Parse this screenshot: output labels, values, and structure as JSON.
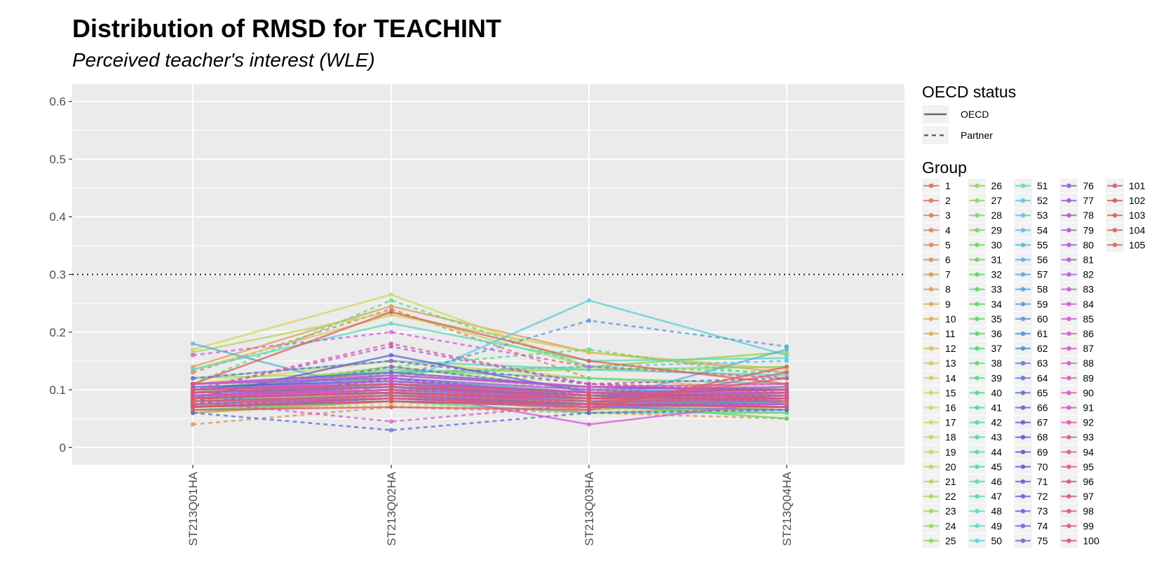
{
  "chart_data": {
    "type": "line",
    "title": "Distribution of RMSD for TEACHINT",
    "subtitle": "Perceived teacher's interest (WLE)",
    "xlabel": "",
    "ylabel": "",
    "categories": [
      "ST213Q01HA",
      "ST213Q02HA",
      "ST213Q03HA",
      "ST213Q04HA"
    ],
    "ylim": [
      -0.03,
      0.63
    ],
    "yticks": [
      0,
      0.1,
      0.2,
      0.3,
      0.4,
      0.5,
      0.6
    ],
    "ytick_labels": [
      "0",
      "0.1",
      "0.2",
      "0.3",
      "0.4",
      "0.5",
      "0.6"
    ],
    "reference_line": 0.3,
    "grid": true,
    "legend_position": "right",
    "linetype_legend": {
      "title": "OECD status",
      "entries": [
        "OECD",
        "Partner"
      ]
    },
    "group_legend": {
      "title": "Group",
      "groups": [
        "1",
        "2",
        "3",
        "4",
        "5",
        "6",
        "7",
        "8",
        "9",
        "10",
        "11",
        "12",
        "13",
        "14",
        "15",
        "16",
        "17",
        "18",
        "19",
        "20",
        "21",
        "22",
        "23",
        "24",
        "25",
        "26",
        "27",
        "28",
        "29",
        "30",
        "31",
        "32",
        "33",
        "34",
        "35",
        "36",
        "37",
        "38",
        "39",
        "40",
        "41",
        "42",
        "43",
        "44",
        "45",
        "46",
        "47",
        "48",
        "49",
        "50",
        "51",
        "52",
        "53",
        "54",
        "55",
        "56",
        "57",
        "58",
        "59",
        "60",
        "61",
        "62",
        "63",
        "64",
        "65",
        "66",
        "67",
        "68",
        "69",
        "70",
        "71",
        "72",
        "73",
        "74",
        "75",
        "76",
        "77",
        "78",
        "79",
        "80",
        "81",
        "82",
        "83",
        "84",
        "85",
        "86",
        "87",
        "88",
        "89",
        "90",
        "91",
        "92",
        "93",
        "94",
        "95",
        "96",
        "97",
        "98",
        "99",
        "100",
        "101",
        "102",
        "103",
        "104",
        "105"
      ]
    },
    "series": [
      {
        "name": "1",
        "status": "OECD",
        "values": [
          0.085,
          0.11,
          0.08,
          0.095
        ]
      },
      {
        "name": "2",
        "status": "OECD",
        "values": [
          0.072,
          0.095,
          0.065,
          0.085
        ]
      },
      {
        "name": "3",
        "status": "Partner",
        "values": [
          0.13,
          0.24,
          0.12,
          0.1
        ]
      },
      {
        "name": "4",
        "status": "OECD",
        "values": [
          0.06,
          0.08,
          0.07,
          0.06
        ]
      },
      {
        "name": "5",
        "status": "OECD",
        "values": [
          0.095,
          0.12,
          0.09,
          0.105
        ]
      },
      {
        "name": "6",
        "status": "Partner",
        "values": [
          0.04,
          0.07,
          0.06,
          0.05
        ]
      },
      {
        "name": "7",
        "status": "OECD",
        "values": [
          0.08,
          0.095,
          0.06,
          0.07
        ]
      },
      {
        "name": "8",
        "status": "OECD",
        "values": [
          0.14,
          0.245,
          0.165,
          0.13
        ]
      },
      {
        "name": "9",
        "status": "OECD",
        "values": [
          0.09,
          0.1,
          0.085,
          0.08
        ]
      },
      {
        "name": "10",
        "status": "Partner",
        "values": [
          0.075,
          0.13,
          0.1,
          0.11
        ]
      },
      {
        "name": "11",
        "status": "OECD",
        "values": [
          0.07,
          0.085,
          0.075,
          0.065
        ]
      },
      {
        "name": "12",
        "status": "Partner",
        "values": [
          0.1,
          0.14,
          0.11,
          0.095
        ]
      },
      {
        "name": "13",
        "status": "OECD",
        "values": [
          0.135,
          0.23,
          0.165,
          0.135
        ]
      },
      {
        "name": "14",
        "status": "OECD",
        "values": [
          0.085,
          0.1,
          0.09,
          0.08
        ]
      },
      {
        "name": "15",
        "status": "Partner",
        "values": [
          0.06,
          0.075,
          0.065,
          0.07
        ]
      },
      {
        "name": "16",
        "status": "OECD",
        "values": [
          0.11,
          0.15,
          0.12,
          0.1
        ]
      },
      {
        "name": "17",
        "status": "OECD",
        "values": [
          0.17,
          0.265,
          0.14,
          0.12
        ]
      },
      {
        "name": "18",
        "status": "Partner",
        "values": [
          0.095,
          0.105,
          0.085,
          0.09
        ]
      },
      {
        "name": "19",
        "status": "OECD",
        "values": [
          0.065,
          0.08,
          0.07,
          0.06
        ]
      },
      {
        "name": "20",
        "status": "OECD",
        "values": [
          0.165,
          0.235,
          0.14,
          0.165
        ]
      },
      {
        "name": "21",
        "status": "Partner",
        "values": [
          0.08,
          0.115,
          0.095,
          0.085
        ]
      },
      {
        "name": "22",
        "status": "OECD",
        "values": [
          0.1,
          0.11,
          0.085,
          0.095
        ]
      },
      {
        "name": "23",
        "status": "OECD",
        "values": [
          0.12,
          0.13,
          0.14,
          0.165
        ]
      },
      {
        "name": "24",
        "status": "Partner",
        "values": [
          0.075,
          0.1,
          0.09,
          0.075
        ]
      },
      {
        "name": "25",
        "status": "OECD",
        "values": [
          0.09,
          0.105,
          0.08,
          0.085
        ]
      },
      {
        "name": "26",
        "status": "OECD",
        "values": [
          0.11,
          0.12,
          0.095,
          0.1
        ]
      },
      {
        "name": "27",
        "status": "Partner",
        "values": [
          0.07,
          0.095,
          0.08,
          0.065
        ]
      },
      {
        "name": "28",
        "status": "OECD",
        "values": [
          0.1,
          0.13,
          0.135,
          0.14
        ]
      },
      {
        "name": "29",
        "status": "OECD",
        "values": [
          0.08,
          0.11,
          0.09,
          0.085
        ]
      },
      {
        "name": "30",
        "status": "Partner",
        "values": [
          0.06,
          0.085,
          0.07,
          0.075
        ]
      },
      {
        "name": "31",
        "status": "OECD",
        "values": [
          0.095,
          0.14,
          0.1,
          0.09
        ]
      },
      {
        "name": "32",
        "status": "OECD",
        "values": [
          0.085,
          0.095,
          0.075,
          0.08
        ]
      },
      {
        "name": "33",
        "status": "Partner",
        "values": [
          0.07,
          0.12,
          0.08,
          0.07
        ]
      },
      {
        "name": "34",
        "status": "OECD",
        "values": [
          0.09,
          0.105,
          0.075,
          0.05
        ]
      },
      {
        "name": "35",
        "status": "OECD",
        "values": [
          0.1,
          0.11,
          0.09,
          0.095
        ]
      },
      {
        "name": "36",
        "status": "Partner",
        "values": [
          0.08,
          0.14,
          0.17,
          0.12
        ]
      },
      {
        "name": "37",
        "status": "OECD",
        "values": [
          0.075,
          0.09,
          0.08,
          0.07
        ]
      },
      {
        "name": "38",
        "status": "OECD",
        "values": [
          0.09,
          0.1,
          0.07,
          0.085
        ]
      },
      {
        "name": "39",
        "status": "Partner",
        "values": [
          0.11,
          0.255,
          0.14,
          0.13
        ]
      },
      {
        "name": "40",
        "status": "OECD",
        "values": [
          0.065,
          0.08,
          0.06,
          0.06
        ]
      },
      {
        "name": "41",
        "status": "OECD",
        "values": [
          0.1,
          0.135,
          0.12,
          0.11
        ]
      },
      {
        "name": "42",
        "status": "Partner",
        "values": [
          0.085,
          0.095,
          0.085,
          0.08
        ]
      },
      {
        "name": "43",
        "status": "OECD",
        "values": [
          0.08,
          0.1,
          0.09,
          0.075
        ]
      },
      {
        "name": "44",
        "status": "OECD",
        "values": [
          0.12,
          0.15,
          0.135,
          0.125
        ]
      },
      {
        "name": "45",
        "status": "Partner",
        "values": [
          0.075,
          0.11,
          0.095,
          0.08
        ]
      },
      {
        "name": "46",
        "status": "OECD",
        "values": [
          0.095,
          0.105,
          0.08,
          0.09
        ]
      },
      {
        "name": "47",
        "status": "OECD",
        "values": [
          0.135,
          0.215,
          0.15,
          0.155
        ]
      },
      {
        "name": "48",
        "status": "Partner",
        "values": [
          0.08,
          0.095,
          0.07,
          0.08
        ]
      },
      {
        "name": "49",
        "status": "OECD",
        "values": [
          0.1,
          0.12,
          0.1,
          0.095
        ]
      },
      {
        "name": "50",
        "status": "OECD",
        "values": [
          0.07,
          0.085,
          0.075,
          0.075
        ]
      },
      {
        "name": "51",
        "status": "Partner",
        "values": [
          0.09,
          0.115,
          0.09,
          0.085
        ]
      },
      {
        "name": "52",
        "status": "OECD",
        "values": [
          0.095,
          0.105,
          0.255,
          0.16
        ]
      },
      {
        "name": "53",
        "status": "OECD",
        "values": [
          0.11,
          0.12,
          0.095,
          0.105
        ]
      },
      {
        "name": "54",
        "status": "Partner",
        "values": [
          0.08,
          0.13,
          0.14,
          0.15
        ]
      },
      {
        "name": "55",
        "status": "OECD",
        "values": [
          0.075,
          0.09,
          0.07,
          0.08
        ]
      },
      {
        "name": "56",
        "status": "OECD",
        "values": [
          0.18,
          0.09,
          0.075,
          0.17
        ]
      },
      {
        "name": "57",
        "status": "Partner",
        "values": [
          0.09,
          0.1,
          0.08,
          0.085
        ]
      },
      {
        "name": "58",
        "status": "OECD",
        "values": [
          0.1,
          0.115,
          0.09,
          0.095
        ]
      },
      {
        "name": "59",
        "status": "OECD",
        "values": [
          0.085,
          0.095,
          0.08,
          0.075
        ]
      },
      {
        "name": "60",
        "status": "Partner",
        "values": [
          0.11,
          0.12,
          0.22,
          0.175
        ]
      },
      {
        "name": "61",
        "status": "OECD",
        "values": [
          0.095,
          0.11,
          0.085,
          0.09
        ]
      },
      {
        "name": "62",
        "status": "OECD",
        "values": [
          0.07,
          0.08,
          0.07,
          0.065
        ]
      },
      {
        "name": "63",
        "status": "Partner",
        "values": [
          0.085,
          0.1,
          0.09,
          0.08
        ]
      },
      {
        "name": "64",
        "status": "OECD",
        "values": [
          0.1,
          0.125,
          0.105,
          0.1
        ]
      },
      {
        "name": "65",
        "status": "OECD",
        "values": [
          0.08,
          0.09,
          0.075,
          0.075
        ]
      },
      {
        "name": "66",
        "status": "Partner",
        "values": [
          0.06,
          0.03,
          0.06,
          0.065
        ]
      },
      {
        "name": "67",
        "status": "OECD",
        "values": [
          0.09,
          0.105,
          0.085,
          0.09
        ]
      },
      {
        "name": "68",
        "status": "OECD",
        "values": [
          0.105,
          0.115,
          0.095,
          0.1
        ]
      },
      {
        "name": "69",
        "status": "Partner",
        "values": [
          0.075,
          0.12,
          0.09,
          0.08
        ]
      },
      {
        "name": "70",
        "status": "OECD",
        "values": [
          0.085,
          0.16,
          0.095,
          0.085
        ]
      },
      {
        "name": "71",
        "status": "OECD",
        "values": [
          0.11,
          0.13,
          0.105,
          0.1
        ]
      },
      {
        "name": "72",
        "status": "Partner",
        "values": [
          0.09,
          0.095,
          0.08,
          0.085
        ]
      },
      {
        "name": "73",
        "status": "OECD",
        "values": [
          0.095,
          0.105,
          0.09,
          0.09
        ]
      },
      {
        "name": "74",
        "status": "OECD",
        "values": [
          0.07,
          0.085,
          0.075,
          0.07
        ]
      },
      {
        "name": "75",
        "status": "Partner",
        "values": [
          0.12,
          0.15,
          0.11,
          0.12
        ]
      },
      {
        "name": "76",
        "status": "OECD",
        "values": [
          0.085,
          0.095,
          0.08,
          0.08
        ]
      },
      {
        "name": "77",
        "status": "OECD",
        "values": [
          0.1,
          0.11,
          0.095,
          0.095
        ]
      },
      {
        "name": "78",
        "status": "Partner",
        "values": [
          0.08,
          0.14,
          0.1,
          0.09
        ]
      },
      {
        "name": "79",
        "status": "OECD",
        "values": [
          0.09,
          0.1,
          0.085,
          0.09
        ]
      },
      {
        "name": "80",
        "status": "OECD",
        "values": [
          0.075,
          0.085,
          0.07,
          0.075
        ]
      },
      {
        "name": "81",
        "status": "Partner",
        "values": [
          0.1,
          0.175,
          0.11,
          0.095
        ]
      },
      {
        "name": "82",
        "status": "OECD",
        "values": [
          0.11,
          0.12,
          0.1,
          0.105
        ]
      },
      {
        "name": "83",
        "status": "OECD",
        "values": [
          0.09,
          0.095,
          0.08,
          0.085
        ]
      },
      {
        "name": "84",
        "status": "Partner",
        "values": [
          0.16,
          0.2,
          0.14,
          0.12
        ]
      },
      {
        "name": "85",
        "status": "OECD",
        "values": [
          0.085,
          0.1,
          0.04,
          0.08
        ]
      },
      {
        "name": "86",
        "status": "OECD",
        "values": [
          0.1,
          0.115,
          0.095,
          0.095
        ]
      },
      {
        "name": "87",
        "status": "Partner",
        "values": [
          0.08,
          0.045,
          0.075,
          0.075
        ]
      },
      {
        "name": "88",
        "status": "OECD",
        "values": [
          0.09,
          0.105,
          0.085,
          0.09
        ]
      },
      {
        "name": "89",
        "status": "OECD",
        "values": [
          0.11,
          0.125,
          0.105,
          0.11
        ]
      },
      {
        "name": "90",
        "status": "Partner",
        "values": [
          0.07,
          0.09,
          0.08,
          0.07
        ]
      },
      {
        "name": "91",
        "status": "OECD",
        "values": [
          0.095,
          0.11,
          0.09,
          0.095
        ]
      },
      {
        "name": "92",
        "status": "OECD",
        "values": [
          0.08,
          0.09,
          0.08,
          0.08
        ]
      },
      {
        "name": "93",
        "status": "Partner",
        "values": [
          0.1,
          0.18,
          0.11,
          0.1
        ]
      },
      {
        "name": "94",
        "status": "OECD",
        "values": [
          0.085,
          0.095,
          0.085,
          0.09
        ]
      },
      {
        "name": "95",
        "status": "OECD",
        "values": [
          0.07,
          0.08,
          0.07,
          0.13
        ]
      },
      {
        "name": "96",
        "status": "Partner",
        "values": [
          0.09,
          0.1,
          0.09,
          0.085
        ]
      },
      {
        "name": "97",
        "status": "OECD",
        "values": [
          0.08,
          0.085,
          0.075,
          0.12
        ]
      },
      {
        "name": "98",
        "status": "OECD",
        "values": [
          0.1,
          0.11,
          0.095,
          0.1
        ]
      },
      {
        "name": "99",
        "status": "Partner",
        "values": [
          0.075,
          0.085,
          0.08,
          0.08
        ]
      },
      {
        "name": "100",
        "status": "OECD",
        "values": [
          0.065,
          0.07,
          0.065,
          0.14
        ]
      },
      {
        "name": "101",
        "status": "OECD",
        "values": [
          0.085,
          0.095,
          0.085,
          0.085
        ]
      },
      {
        "name": "102",
        "status": "Partner",
        "values": [
          0.095,
          0.105,
          0.09,
          0.095
        ]
      },
      {
        "name": "103",
        "status": "OECD",
        "values": [
          0.07,
          0.08,
          0.075,
          0.07
        ]
      },
      {
        "name": "104",
        "status": "OECD",
        "values": [
          0.11,
          0.235,
          0.15,
          0.11
        ]
      },
      {
        "name": "105",
        "status": "Partner",
        "values": [
          0.08,
          0.09,
          0.08,
          0.08
        ]
      }
    ]
  }
}
